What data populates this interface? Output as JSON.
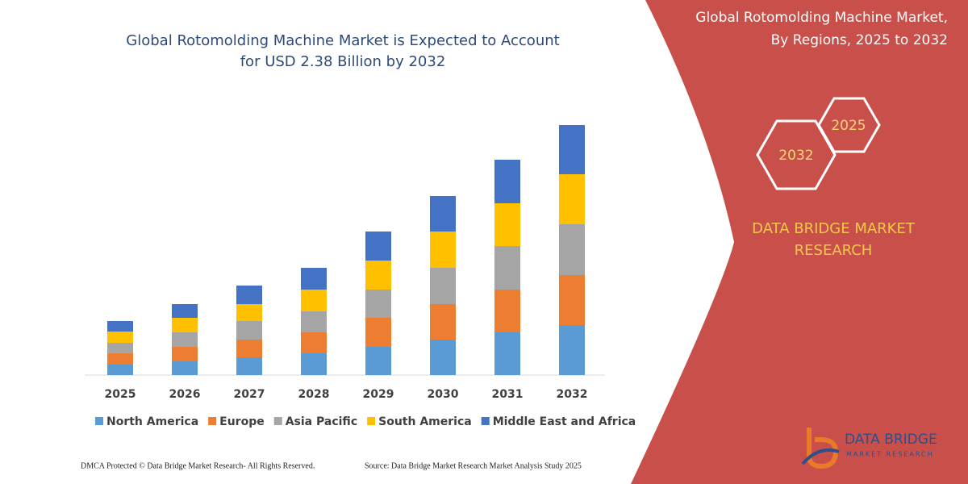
{
  "chart_data": {
    "type": "stacked-bar",
    "title": [
      "Global Rotomolding Machine Market is Expected to Account",
      "for USD 2.38 Billion by 2032"
    ],
    "categories": [
      "2025",
      "2026",
      "2027",
      "2028",
      "2029",
      "2030",
      "2031",
      "2032"
    ],
    "series": [
      {
        "name": "North America",
        "color": "#5b9bd5",
        "values": [
          13,
          17,
          22,
          27,
          35,
          44,
          53,
          62
        ]
      },
      {
        "name": "Europe",
        "color": "#ed7d31",
        "values": [
          14,
          18,
          22,
          26,
          36,
          44,
          53,
          62
        ]
      },
      {
        "name": "Asia Pacific",
        "color": "#a5a5a5",
        "values": [
          13,
          18,
          23,
          26,
          35,
          45,
          54,
          63
        ]
      },
      {
        "name": "South America",
        "color": "#ffc000",
        "values": [
          14,
          18,
          21,
          27,
          36,
          45,
          53,
          62
        ]
      },
      {
        "name": "Middle East and Africa",
        "color": "#4472c4",
        "values": [
          13,
          17,
          23,
          27,
          36,
          44,
          54,
          61
        ]
      }
    ]
  },
  "panel": {
    "title": [
      "Global Rotomolding Machine Market,",
      "By Regions, 2025 to 2032"
    ],
    "hexagons": [
      "2025",
      "2032"
    ],
    "brand": [
      "DATA BRIDGE MARKET",
      "RESEARCH"
    ]
  },
  "logo": {
    "name": "DATA BRIDGE",
    "tagline": "MARKET RESEARCH"
  },
  "footer": {
    "left": "DMCA Protected © Data Bridge Market Research-  All Rights Reserved.",
    "right": "Source: Data Bridge Market Research  Market Analysis Study 2025"
  }
}
